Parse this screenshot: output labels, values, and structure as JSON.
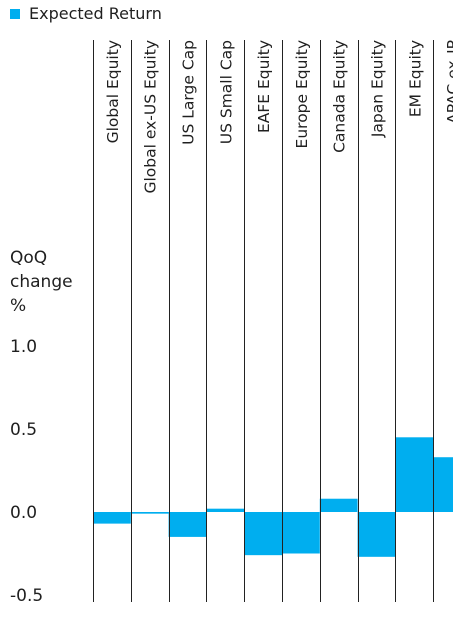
{
  "chart_data": {
    "type": "bar",
    "legend": [
      {
        "name": "Expected Return",
        "color": "#00AEEF"
      }
    ],
    "legend_position": "top-left",
    "ylabel_lines": [
      "QoQ",
      "change",
      "%"
    ],
    "yticks": [
      "1.0",
      "0.5",
      "0.0",
      "-0.5"
    ],
    "ylim": [
      -0.5,
      1.0
    ],
    "grid": false,
    "categories": [
      "Global Equity",
      "Global ex-US Equity",
      "US Large Cap",
      "US Small Cap",
      "EAFE Equity",
      "Europe Equity",
      "Canada Equity",
      "Japan Equity",
      "EM Equity",
      "APAC ex-JP"
    ],
    "series": [
      {
        "name": "Expected Return",
        "values": [
          -0.07,
          -0.01,
          -0.15,
          0.02,
          -0.26,
          -0.25,
          0.08,
          -0.27,
          0.45,
          0.33
        ]
      }
    ],
    "bar_color": "#00AEEF"
  }
}
